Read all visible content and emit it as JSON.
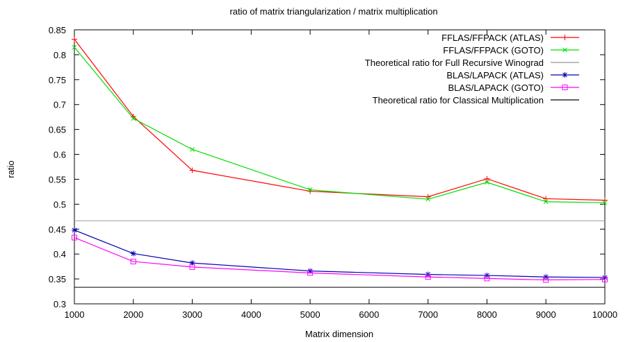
{
  "chart_data": {
    "type": "line",
    "title": "ratio of matrix triangularization / matrix multiplication",
    "xlabel": "Matrix dimension",
    "ylabel": "ratio",
    "xlim": [
      1000,
      10000
    ],
    "ylim": [
      0.3,
      0.85
    ],
    "xticks": [
      1000,
      2000,
      3000,
      4000,
      5000,
      6000,
      7000,
      8000,
      9000,
      10000
    ],
    "yticks": [
      0.3,
      0.35,
      0.4,
      0.45,
      0.5,
      0.55,
      0.6,
      0.65,
      0.7,
      0.75,
      0.8,
      0.85
    ],
    "x": [
      1000,
      2000,
      3000,
      5000,
      7000,
      8000,
      9000,
      10000
    ],
    "legend_position": "top-right",
    "grid": false,
    "series": [
      {
        "name": "FFLAS/FFPACK (ATLAS)",
        "color": "#ff0000",
        "marker": "plus",
        "values": [
          0.831,
          0.676,
          0.568,
          0.526,
          0.515,
          0.551,
          0.511,
          0.508
        ]
      },
      {
        "name": "FFLAS/FFPACK (GOTO)",
        "color": "#00dd00",
        "marker": "cross",
        "values": [
          0.815,
          0.672,
          0.61,
          0.529,
          0.51,
          0.544,
          0.505,
          0.503
        ]
      },
      {
        "name": "Theoretical ratio for Full Recursive Winograd",
        "color": "#999999",
        "marker": "none",
        "constant": 0.4667
      },
      {
        "name": "BLAS/LAPACK  (ATLAS)",
        "color": "#0000b4",
        "marker": "star",
        "values": [
          0.448,
          0.401,
          0.382,
          0.366,
          0.359,
          0.357,
          0.354,
          0.353
        ]
      },
      {
        "name": "BLAS/LAPACK  (GOTO)",
        "color": "#ff00ff",
        "marker": "square",
        "values": [
          0.433,
          0.385,
          0.374,
          0.362,
          0.354,
          0.351,
          0.348,
          0.349
        ]
      },
      {
        "name": "Theoretical ratio for Classical Multiplication",
        "color": "#000000",
        "marker": "none",
        "constant": 0.3333
      }
    ]
  }
}
